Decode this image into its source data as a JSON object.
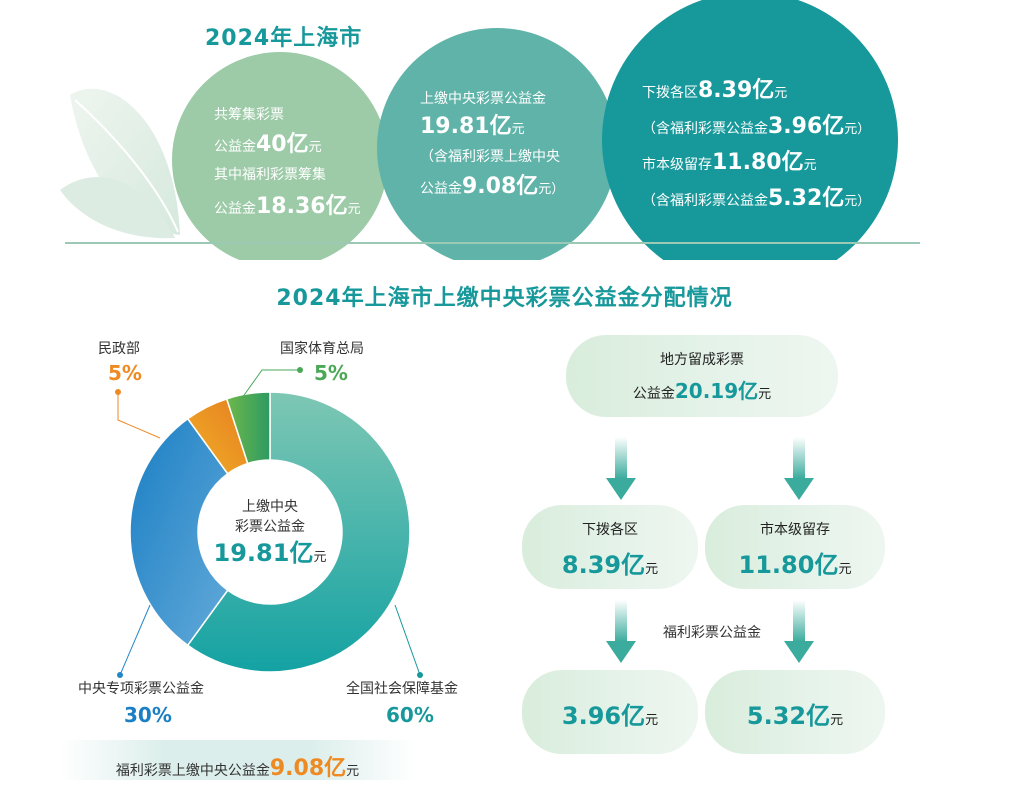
{
  "top": {
    "title": "2024年上海市",
    "circle1": {
      "line1": "共筹集彩票",
      "line2_prefix": "公益金",
      "line2_value": "40",
      "line2_unit_big": "亿",
      "line2_unit": "元",
      "line3": "其中福利彩票筹集",
      "line4_prefix": "公益金",
      "line4_value": "18.36",
      "line4_unit_big": "亿",
      "line4_unit": "元"
    },
    "circle2": {
      "line1": "上缴中央彩票公益金",
      "line2_value": "19.81",
      "line2_unit_big": "亿",
      "line2_unit": "元",
      "line3": "（含福利彩票上缴中央",
      "line4_prefix": "公益金",
      "line4_value": "9.08",
      "line4_unit_big": "亿",
      "line4_unit": "元）"
    },
    "circle3": {
      "line1_prefix": "下拨各区",
      "line1_value": "8.39",
      "line1_unit_big": "亿",
      "line1_unit": "元",
      "line2_prefix": "（含福利彩票公益金",
      "line2_value": "3.96",
      "line2_unit_big": "亿",
      "line2_unit": "元）",
      "line3_prefix": "市本级留存",
      "line3_value": "11.80",
      "line3_unit_big": "亿",
      "line3_unit": "元",
      "line4_prefix": "（含福利彩票公益金",
      "line4_value": "5.32",
      "line4_unit_big": "亿",
      "line4_unit": "元）"
    }
  },
  "section2": {
    "title": "2024年上海市上缴中央彩票公益金分配情况"
  },
  "chart_data": {
    "type": "pie",
    "title": "2024年上海市上缴中央彩票公益金分配情况",
    "center_label_line1": "上缴中央",
    "center_label_line2": "彩票公益金",
    "center_value": "19.81",
    "center_unit_big": "亿",
    "center_unit": "元",
    "categories": [
      "全国社会保障基金",
      "中央专项彩票公益金",
      "民政部",
      "国家体育总局"
    ],
    "values": [
      60,
      30,
      5,
      5
    ],
    "value_labels": [
      "60%",
      "30%",
      "5%",
      "5%"
    ],
    "colors": [
      "#17a3a0",
      "#2386c8",
      "#eb9a22",
      "#4aa857"
    ]
  },
  "flow": {
    "top_label": "地方留成彩票",
    "top_prefix": "公益金",
    "top_value": "20.19",
    "top_unit_big": "亿",
    "top_unit": "元",
    "left_label": "下拨各区",
    "left_value": "8.39",
    "left_unit_big": "亿",
    "left_unit": "元",
    "right_label": "市本级留存",
    "right_value": "11.80",
    "right_unit_big": "亿",
    "right_unit": "元",
    "middle_label": "福利彩票公益金",
    "bl_value": "3.96",
    "bl_unit_big": "亿",
    "bl_unit": "元",
    "br_value": "5.32",
    "br_unit_big": "亿",
    "br_unit": "元"
  },
  "bottom": {
    "prefix": "福利彩票上缴中央公益金",
    "value": "9.08",
    "unit_big": "亿",
    "unit": "元"
  }
}
